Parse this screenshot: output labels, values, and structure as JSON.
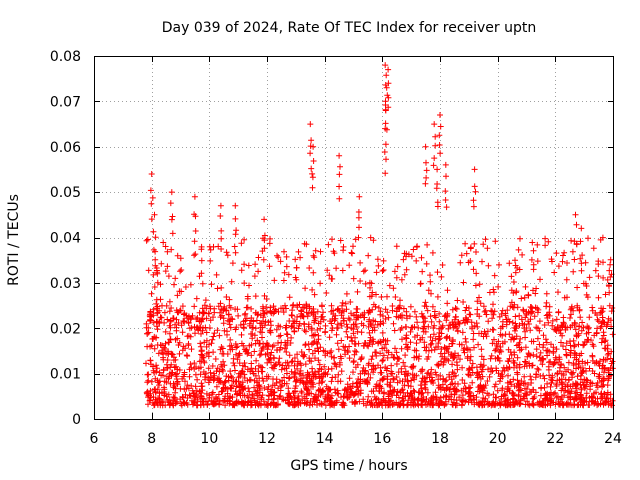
{
  "chart_data": {
    "type": "scatter",
    "title": "Day 039 of 2024, Rate Of TEC Index for receiver uptn",
    "xlabel": "GPS time / hours",
    "ylabel": "ROTI / TECUs",
    "xlim": [
      6,
      24
    ],
    "ylim": [
      0,
      0.08
    ],
    "grid": true,
    "marker": "+",
    "xticks": [
      "6",
      "8",
      "10",
      "12",
      "14",
      "16",
      "18",
      "20",
      "22",
      "24"
    ],
    "yticks": [
      "0",
      "0.01",
      "0.02",
      "0.03",
      "0.04",
      "0.05",
      "0.06",
      "0.07",
      "0.08"
    ],
    "series": [
      {
        "name": "ROTI",
        "color": "#ff0000",
        "x_range": [
          7.8,
          24.0
        ],
        "bulk_range": [
          0.003,
          0.025
        ],
        "peaks": [
          {
            "x": 8.0,
            "y": 0.054
          },
          {
            "x": 8.1,
            "y": 0.045
          },
          {
            "x": 8.7,
            "y": 0.05
          },
          {
            "x": 9.5,
            "y": 0.049
          },
          {
            "x": 10.4,
            "y": 0.047
          },
          {
            "x": 10.9,
            "y": 0.047
          },
          {
            "x": 11.9,
            "y": 0.044
          },
          {
            "x": 13.5,
            "y": 0.065
          },
          {
            "x": 13.6,
            "y": 0.06
          },
          {
            "x": 14.5,
            "y": 0.058
          },
          {
            "x": 15.2,
            "y": 0.049
          },
          {
            "x": 16.1,
            "y": 0.078
          },
          {
            "x": 16.2,
            "y": 0.077
          },
          {
            "x": 16.15,
            "y": 0.073
          },
          {
            "x": 16.1,
            "y": 0.064
          },
          {
            "x": 17.5,
            "y": 0.06
          },
          {
            "x": 17.8,
            "y": 0.065
          },
          {
            "x": 18.0,
            "y": 0.067
          },
          {
            "x": 17.9,
            "y": 0.055
          },
          {
            "x": 18.2,
            "y": 0.056
          },
          {
            "x": 19.2,
            "y": 0.055
          },
          {
            "x": 20.6,
            "y": 0.035
          },
          {
            "x": 22.7,
            "y": 0.045
          },
          {
            "x": 22.9,
            "y": 0.042
          },
          {
            "x": 23.9,
            "y": 0.034
          }
        ]
      }
    ]
  }
}
